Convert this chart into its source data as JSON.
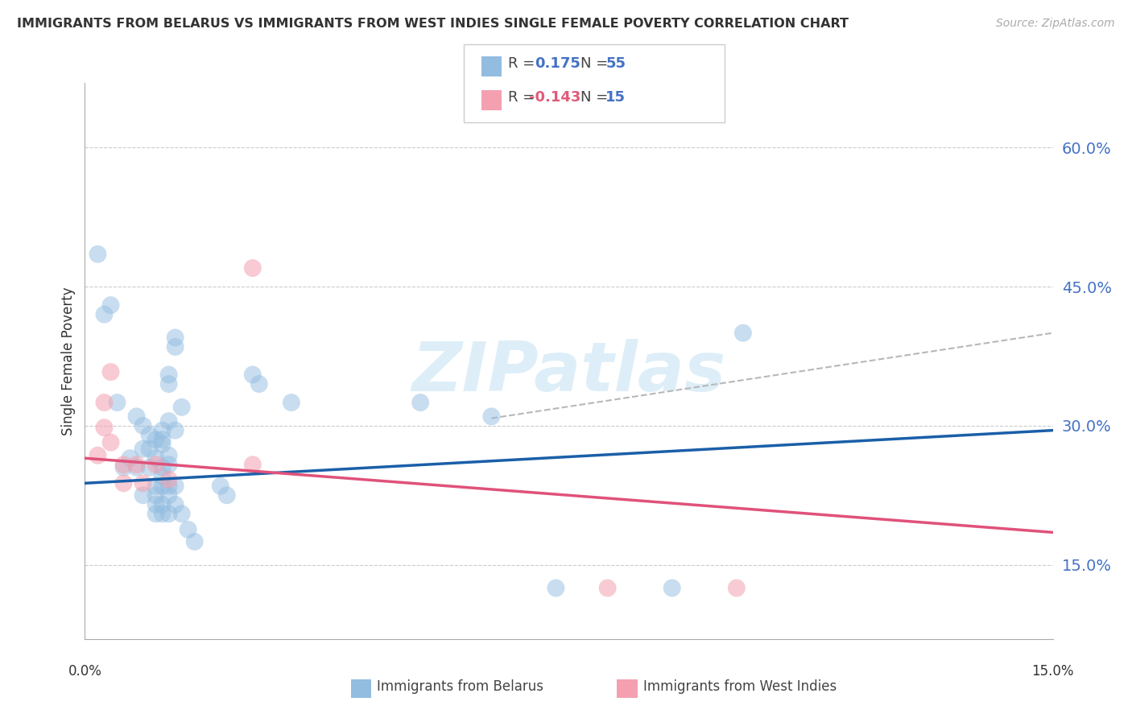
{
  "title": "IMMIGRANTS FROM BELARUS VS IMMIGRANTS FROM WEST INDIES SINGLE FEMALE POVERTY CORRELATION CHART",
  "source": "Source: ZipAtlas.com",
  "ylabel": "Single Female Poverty",
  "ytick_labels": [
    "15.0%",
    "30.0%",
    "45.0%",
    "60.0%"
  ],
  "ytick_vals": [
    0.15,
    0.3,
    0.45,
    0.6
  ],
  "xmin": 0.0,
  "xmax": 0.15,
  "ymin": 0.07,
  "ymax": 0.67,
  "watermark": "ZIPatlas",
  "blue_scatter_color": "#92bce0",
  "pink_scatter_color": "#f4a0b0",
  "blue_line_color": "#1a5fa8",
  "pink_line_color": "#e0527a",
  "dashed_line_color": "#b8b8b8",
  "blue_scatter": [
    [
      0.002,
      0.485
    ],
    [
      0.003,
      0.42
    ],
    [
      0.004,
      0.43
    ],
    [
      0.005,
      0.325
    ],
    [
      0.006,
      0.255
    ],
    [
      0.007,
      0.265
    ],
    [
      0.008,
      0.255
    ],
    [
      0.008,
      0.31
    ],
    [
      0.009,
      0.225
    ],
    [
      0.009,
      0.3
    ],
    [
      0.009,
      0.275
    ],
    [
      0.01,
      0.275
    ],
    [
      0.01,
      0.29
    ],
    [
      0.01,
      0.255
    ],
    [
      0.011,
      0.285
    ],
    [
      0.011,
      0.265
    ],
    [
      0.011,
      0.235
    ],
    [
      0.011,
      0.225
    ],
    [
      0.011,
      0.215
    ],
    [
      0.011,
      0.205
    ],
    [
      0.012,
      0.295
    ],
    [
      0.012,
      0.285
    ],
    [
      0.012,
      0.28
    ],
    [
      0.012,
      0.255
    ],
    [
      0.012,
      0.245
    ],
    [
      0.012,
      0.235
    ],
    [
      0.012,
      0.215
    ],
    [
      0.012,
      0.205
    ],
    [
      0.013,
      0.355
    ],
    [
      0.013,
      0.345
    ],
    [
      0.013,
      0.305
    ],
    [
      0.013,
      0.268
    ],
    [
      0.013,
      0.258
    ],
    [
      0.013,
      0.235
    ],
    [
      0.013,
      0.225
    ],
    [
      0.013,
      0.205
    ],
    [
      0.014,
      0.395
    ],
    [
      0.014,
      0.385
    ],
    [
      0.014,
      0.295
    ],
    [
      0.014,
      0.235
    ],
    [
      0.014,
      0.215
    ],
    [
      0.015,
      0.32
    ],
    [
      0.015,
      0.205
    ],
    [
      0.016,
      0.188
    ],
    [
      0.017,
      0.175
    ],
    [
      0.021,
      0.235
    ],
    [
      0.022,
      0.225
    ],
    [
      0.026,
      0.355
    ],
    [
      0.027,
      0.345
    ],
    [
      0.032,
      0.325
    ],
    [
      0.052,
      0.325
    ],
    [
      0.063,
      0.31
    ],
    [
      0.073,
      0.125
    ],
    [
      0.091,
      0.125
    ],
    [
      0.102,
      0.4
    ]
  ],
  "pink_scatter": [
    [
      0.002,
      0.268
    ],
    [
      0.003,
      0.325
    ],
    [
      0.003,
      0.298
    ],
    [
      0.004,
      0.358
    ],
    [
      0.004,
      0.282
    ],
    [
      0.006,
      0.258
    ],
    [
      0.006,
      0.238
    ],
    [
      0.008,
      0.258
    ],
    [
      0.009,
      0.238
    ],
    [
      0.011,
      0.258
    ],
    [
      0.013,
      0.242
    ],
    [
      0.026,
      0.47
    ],
    [
      0.026,
      0.258
    ],
    [
      0.081,
      0.125
    ],
    [
      0.101,
      0.125
    ]
  ],
  "blue_line_x": [
    0.0,
    0.15
  ],
  "blue_line_y": [
    0.238,
    0.295
  ],
  "pink_line_x": [
    0.0,
    0.15
  ],
  "pink_line_y": [
    0.265,
    0.185
  ],
  "dashed_line_x": [
    0.063,
    0.15
  ],
  "dashed_line_y": [
    0.308,
    0.4
  ]
}
